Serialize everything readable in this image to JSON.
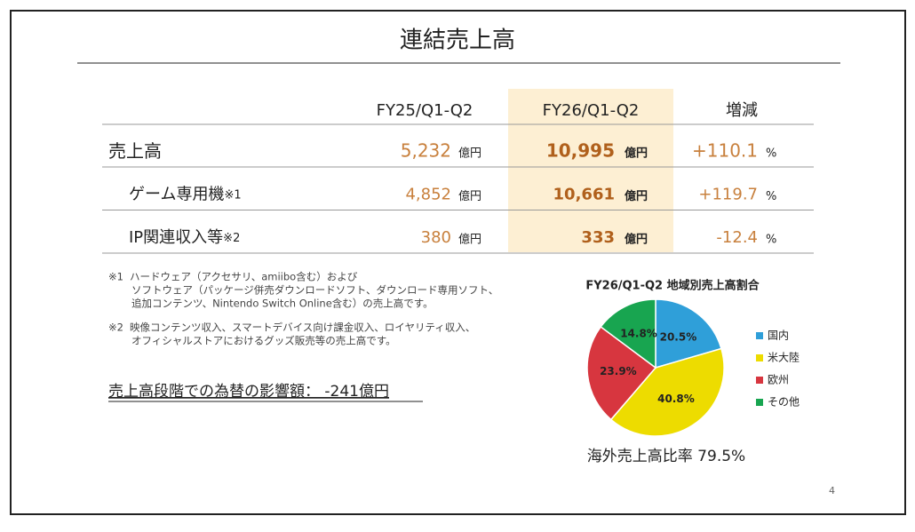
{
  "title": "連結売上高",
  "table": {
    "columns": [
      "FY25/Q1-Q2",
      "FY26/Q1-Q2",
      "増減"
    ],
    "rows": [
      {
        "label": "売上高",
        "fy25": "5,232",
        "fy25_unit": "億円",
        "fy26": "10,995",
        "fy26_unit": "億円",
        "change": "+110.1",
        "change_unit": "%"
      },
      {
        "label": "ゲーム専用機",
        "mark": "※1",
        "fy25": "4,852",
        "fy25_unit": "億円",
        "fy26": "10,661",
        "fy26_unit": "億円",
        "change": "+119.7",
        "change_unit": "%"
      },
      {
        "label": "IP関連収入等",
        "mark": "※2",
        "fy25": "380",
        "fy25_unit": "億円",
        "fy26": "333",
        "fy26_unit": "億円",
        "change": "-12.4",
        "change_unit": "%"
      }
    ]
  },
  "notes": [
    {
      "mark": "※1",
      "lines": [
        "ハードウェア（アクセサリ、amiibo含む）および",
        "ソフトウェア（パッケージ併売ダウンロードソフト、ダウンロード専用ソフト、",
        "追加コンテンツ、Nintendo Switch Online含む）の売上高です。"
      ]
    },
    {
      "mark": "※2",
      "lines": [
        "映像コンテンツ収入、スマートデバイス向け課金収入、ロイヤリティ収入、",
        "オフィシャルストアにおけるグッズ販売等の売上高です。"
      ]
    }
  ],
  "fx_note": "売上高段階での為替の影響額： -241億円",
  "chart_data": {
    "type": "pie",
    "title": "FY26/Q1-Q2 地域別売上高割合",
    "categories": [
      "国内",
      "米大陸",
      "欧州",
      "その他"
    ],
    "values": [
      20.5,
      40.8,
      23.9,
      14.8
    ],
    "value_labels": [
      "20.5%",
      "40.8%",
      "23.9%",
      "14.8%"
    ],
    "colors": [
      "#2f9fd9",
      "#eddc00",
      "#d7363f",
      "#18a550"
    ]
  },
  "overseas_ratio": "海外売上高比率 79.5%",
  "page_number": "4"
}
